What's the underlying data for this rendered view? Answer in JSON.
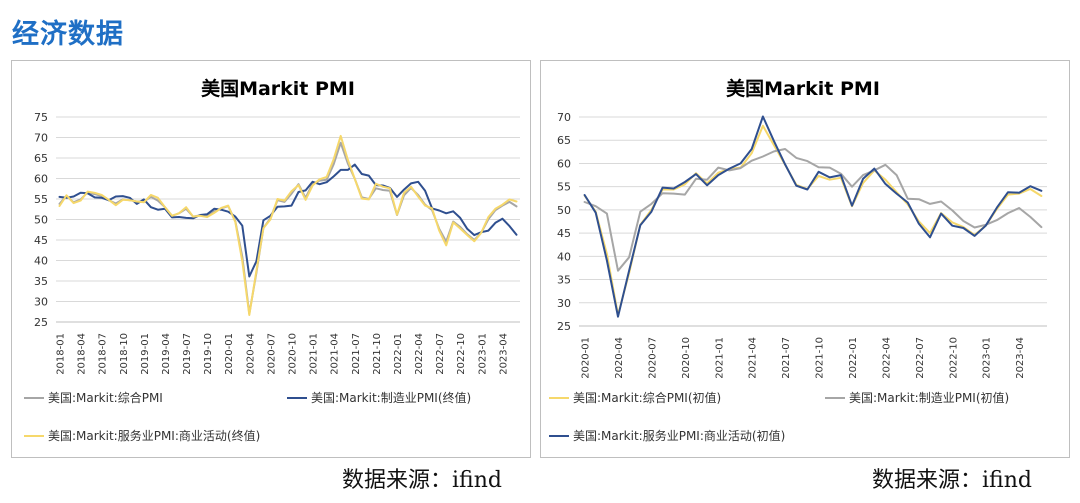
{
  "page_title": "经济数据",
  "sources": {
    "left": "数据来源：ifind",
    "right": "数据来源：ifind"
  },
  "colors": {
    "title_blue": "#1f6fc5",
    "composite_gray": "#a6a6a6",
    "manufacturing_blue": "#2f4f8f",
    "services_yellow": "#f6d86b"
  },
  "chart_data": [
    {
      "type": "line",
      "title": "美国Markit  PMI",
      "xlabel": "",
      "ylabel": "",
      "ylim": [
        25,
        75
      ],
      "yticks": [
        25,
        30,
        35,
        40,
        45,
        50,
        55,
        60,
        65,
        70,
        75
      ],
      "grid": true,
      "legend_position": "bottom",
      "x": [
        "2018-01",
        "2018-02",
        "2018-03",
        "2018-04",
        "2018-05",
        "2018-06",
        "2018-07",
        "2018-08",
        "2018-09",
        "2018-10",
        "2018-11",
        "2018-12",
        "2019-01",
        "2019-02",
        "2019-03",
        "2019-04",
        "2019-05",
        "2019-06",
        "2019-07",
        "2019-08",
        "2019-09",
        "2019-10",
        "2019-11",
        "2019-12",
        "2020-01",
        "2020-02",
        "2020-03",
        "2020-04",
        "2020-05",
        "2020-06",
        "2020-07",
        "2020-08",
        "2020-09",
        "2020-10",
        "2020-11",
        "2020-12",
        "2021-01",
        "2021-02",
        "2021-03",
        "2021-04",
        "2021-05",
        "2021-06",
        "2021-07",
        "2021-08",
        "2021-09",
        "2021-10",
        "2021-11",
        "2021-12",
        "2022-01",
        "2022-02",
        "2022-03",
        "2022-04",
        "2022-05",
        "2022-06",
        "2022-07",
        "2022-08",
        "2022-09",
        "2022-10",
        "2022-11",
        "2022-12",
        "2023-01",
        "2023-02",
        "2023-03",
        "2023-04",
        "2023-05",
        "2023-06"
      ],
      "xticks": [
        "2018-01",
        "2018-04",
        "2018-07",
        "2018-10",
        "2019-01",
        "2019-04",
        "2019-07",
        "2019-10",
        "2020-01",
        "2020-04",
        "2020-07",
        "2020-10",
        "2021-01",
        "2021-04",
        "2021-07",
        "2021-10",
        "2022-01",
        "2022-04",
        "2022-07",
        "2022-10",
        "2023-01",
        "2023-04"
      ],
      "series": [
        {
          "name": "美国:Markit:综合PMI",
          "color": "#a6a6a6",
          "values": [
            53.8,
            55.8,
            54.2,
            54.9,
            56.6,
            56.2,
            55.7,
            54.7,
            53.9,
            54.9,
            54.7,
            54.4,
            54.4,
            55.5,
            54.6,
            53.0,
            50.9,
            51.5,
            52.6,
            50.7,
            51.0,
            50.9,
            52.0,
            52.7,
            53.3,
            49.6,
            40.9,
            27.0,
            37.0,
            47.9,
            50.3,
            54.7,
            54.3,
            56.3,
            58.6,
            55.3,
            58.7,
            59.5,
            59.7,
            63.5,
            68.7,
            63.7,
            59.9,
            55.4,
            55.0,
            57.6,
            57.2,
            57.0,
            51.1,
            55.9,
            57.7,
            56.0,
            53.6,
            52.3,
            47.7,
            44.6,
            49.5,
            48.2,
            46.4,
            45.0,
            46.8,
            50.1,
            52.3,
            53.4,
            54.3,
            53.2
          ]
        },
        {
          "name": "美国:Markit:制造业PMI(终值)",
          "color": "#2f4f8f",
          "values": [
            55.5,
            55.3,
            55.6,
            56.5,
            56.4,
            55.4,
            55.3,
            54.7,
            55.6,
            55.7,
            55.3,
            53.8,
            54.9,
            53.0,
            52.4,
            52.6,
            50.5,
            50.6,
            50.4,
            50.3,
            51.1,
            51.3,
            52.6,
            52.4,
            51.9,
            50.7,
            48.5,
            36.1,
            39.8,
            49.8,
            50.9,
            53.1,
            53.2,
            53.4,
            56.7,
            57.1,
            59.2,
            58.6,
            59.1,
            60.5,
            62.1,
            62.1,
            63.4,
            61.1,
            60.7,
            58.4,
            58.3,
            57.7,
            55.5,
            57.3,
            58.8,
            59.2,
            57.0,
            52.7,
            52.2,
            51.5,
            52.0,
            50.4,
            47.7,
            46.2,
            46.9,
            47.3,
            49.2,
            50.2,
            48.4,
            46.3
          ]
        },
        {
          "name": "美国:Markit:服务业PMI:商业活动(终值)",
          "color": "#f6d86b",
          "values": [
            53.3,
            55.9,
            54.0,
            54.6,
            56.8,
            56.5,
            56.0,
            54.8,
            53.5,
            54.8,
            54.7,
            54.4,
            54.2,
            56.0,
            55.3,
            53.0,
            50.9,
            51.5,
            53.0,
            50.7,
            50.9,
            50.6,
            51.6,
            52.8,
            53.4,
            49.4,
            39.8,
            26.7,
            37.5,
            47.9,
            50.0,
            55.0,
            54.6,
            56.9,
            58.4,
            54.8,
            58.3,
            59.8,
            60.4,
            64.7,
            70.4,
            64.6,
            59.9,
            55.1,
            54.9,
            58.7,
            58.0,
            57.6,
            51.2,
            56.5,
            58.0,
            55.6,
            53.4,
            52.7,
            47.3,
            43.7,
            49.3,
            47.8,
            46.2,
            44.7,
            46.8,
            50.6,
            52.6,
            53.6,
            54.9,
            54.4
          ]
        }
      ]
    },
    {
      "type": "line",
      "title": "美国Markit  PMI",
      "xlabel": "",
      "ylabel": "",
      "ylim": [
        25,
        70
      ],
      "yticks": [
        25,
        30,
        35,
        40,
        45,
        50,
        55,
        60,
        65,
        70
      ],
      "grid": true,
      "legend_position": "bottom",
      "x": [
        "2020-01",
        "2020-02",
        "2020-03",
        "2020-04",
        "2020-05",
        "2020-06",
        "2020-07",
        "2020-08",
        "2020-09",
        "2020-10",
        "2020-11",
        "2020-12",
        "2021-01",
        "2021-02",
        "2021-03",
        "2021-04",
        "2021-05",
        "2021-06",
        "2021-07",
        "2021-08",
        "2021-09",
        "2021-10",
        "2021-11",
        "2021-12",
        "2022-01",
        "2022-02",
        "2022-03",
        "2022-04",
        "2022-05",
        "2022-06",
        "2022-07",
        "2022-08",
        "2022-09",
        "2022-10",
        "2022-11",
        "2022-12",
        "2023-01",
        "2023-02",
        "2023-03",
        "2023-04",
        "2023-05",
        "2023-06"
      ],
      "xticks": [
        "2020-01",
        "2020-04",
        "2020-07",
        "2020-10",
        "2021-01",
        "2021-04",
        "2021-07",
        "2021-10",
        "2022-01",
        "2022-04",
        "2022-07",
        "2022-10",
        "2023-01",
        "2023-04"
      ],
      "series": [
        {
          "name": "美国:Markit:综合PMI(初值)",
          "color": "#f6d86b",
          "values": [
            53.1,
            49.6,
            40.5,
            27.4,
            36.4,
            46.8,
            50.0,
            54.4,
            54.4,
            55.5,
            57.9,
            55.7,
            58.0,
            58.8,
            59.1,
            62.2,
            68.1,
            63.9,
            59.7,
            55.4,
            54.5,
            57.3,
            56.5,
            56.9,
            50.8,
            55.8,
            58.5,
            56.5,
            53.8,
            51.2,
            47.5,
            45.0,
            49.3,
            47.3,
            46.3,
            44.6,
            46.6,
            50.2,
            53.3,
            53.5,
            54.5,
            53.0
          ]
        },
        {
          "name": "美国:Markit:制造业PMI(初值)",
          "color": "#a6a6a6",
          "values": [
            51.7,
            50.8,
            49.2,
            36.9,
            39.8,
            49.6,
            51.3,
            53.6,
            53.5,
            53.3,
            56.7,
            56.5,
            59.1,
            58.5,
            59.0,
            60.6,
            61.5,
            62.6,
            63.1,
            61.2,
            60.5,
            59.2,
            59.1,
            57.8,
            55.0,
            57.5,
            58.5,
            59.7,
            57.5,
            52.4,
            52.3,
            51.3,
            51.8,
            49.9,
            47.6,
            46.2,
            46.8,
            47.8,
            49.3,
            50.4,
            48.5,
            46.3
          ]
        },
        {
          "name": "美国:Markit:服务业PMI:商业活动(初值)",
          "color": "#2f4f8f",
          "values": [
            53.2,
            49.4,
            39.1,
            27.0,
            36.9,
            46.7,
            49.6,
            54.8,
            54.6,
            56.0,
            57.7,
            55.3,
            57.5,
            58.9,
            60.0,
            63.1,
            70.1,
            64.8,
            59.8,
            55.2,
            54.4,
            58.2,
            57.0,
            57.5,
            50.9,
            56.7,
            58.9,
            55.6,
            53.5,
            51.6,
            47.0,
            44.1,
            49.2,
            46.6,
            46.1,
            44.4,
            46.6,
            50.5,
            53.8,
            53.7,
            55.1,
            54.1
          ]
        }
      ]
    }
  ]
}
